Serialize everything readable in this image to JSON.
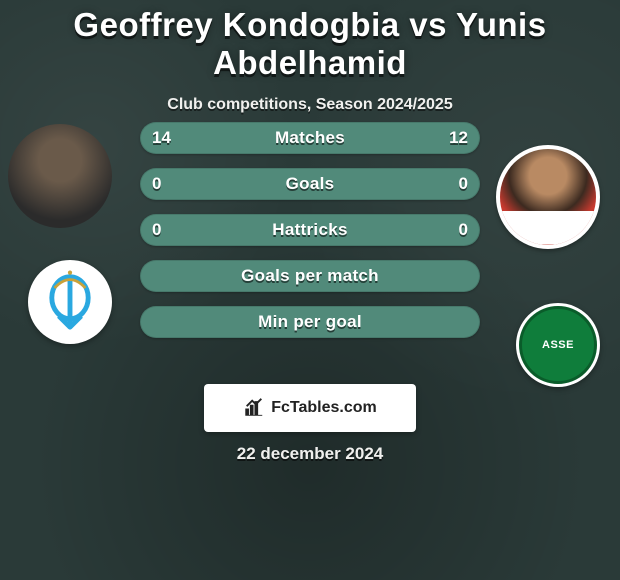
{
  "title": "Geoffrey Kondogbia vs Yunis Abdelhamid",
  "title_fontsize": 33,
  "title_color": "#ffffff",
  "subtitle": "Club competitions, Season 2024/2025",
  "subtitle_fontsize": 16,
  "background_color": "#2a3a38",
  "players": {
    "left": {
      "name": "Geoffrey Kondogbia",
      "club": "Olympique Marseille",
      "club_abbr": "OM",
      "club_color": "#2aa8e0"
    },
    "right": {
      "name": "Yunis Abdelhamid",
      "club": "AS Saint-Étienne",
      "club_abbr": "ASSE",
      "club_color": "#0f7d3b"
    }
  },
  "bars": [
    {
      "label": "Matches",
      "left": "14",
      "right": "12",
      "fill": "#518a7a",
      "show_values": true
    },
    {
      "label": "Goals",
      "left": "0",
      "right": "0",
      "fill": "#518a7a",
      "show_values": true
    },
    {
      "label": "Hattricks",
      "left": "0",
      "right": "0",
      "fill": "#518a7a",
      "show_values": true
    },
    {
      "label": "Goals per match",
      "left": "",
      "right": "",
      "fill": "#518a7a",
      "show_values": false
    },
    {
      "label": "Min per goal",
      "left": "",
      "right": "",
      "fill": "#518a7a",
      "show_values": false
    }
  ],
  "bar_label_fontsize": 17,
  "bar_value_fontsize": 17,
  "brand": "FcTables.com",
  "date": "22 december 2024",
  "date_fontsize": 17
}
